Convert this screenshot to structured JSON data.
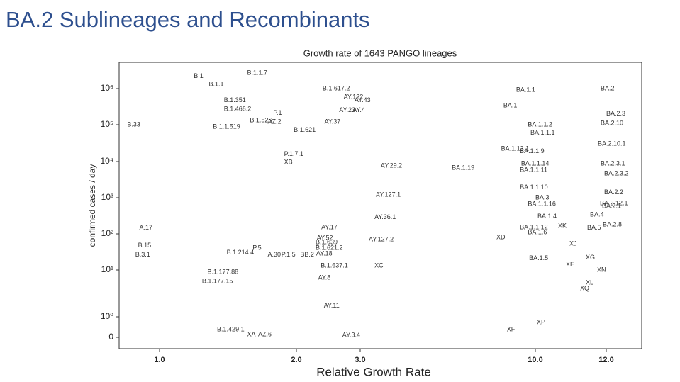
{
  "header": {
    "title": "BA.2 Sublineages and Recombinants"
  },
  "chart_data": {
    "type": "scatter",
    "title": "Growth rate of 1643 PANGO lineages",
    "xlabel": "Relative Growth Rate",
    "ylabel": "confirmed cases / day",
    "xlim": [
      0.7,
      13
    ],
    "ylim": [
      -0.55,
      5400000
    ],
    "xticks": [
      {
        "value": 1,
        "label": "1.0"
      },
      {
        "value": 2,
        "label": "2.0"
      },
      {
        "value": 3,
        "label": "3.0"
      },
      {
        "value": 10,
        "label": "10.0"
      },
      {
        "value": 12,
        "label": "12.0"
      }
    ],
    "yticks": [
      0,
      {
        "value": 1,
        "label": "10⁰"
      },
      {
        "value": 10,
        "label": "10¹"
      },
      {
        "value": 100,
        "label": "10²"
      },
      {
        "value": 1000,
        "label": "10³"
      },
      {
        "value": 10000,
        "label": "10⁴"
      },
      {
        "value": 100000,
        "label": "10⁵"
      },
      {
        "value": 1000000,
        "label": "10⁶"
      }
    ],
    "labels": [
      "B.1",
      "B.1.1.7",
      "B.1.1",
      "B.1.617.2",
      "AY.122",
      "AY.43",
      "BA.1.1",
      "BA.2",
      "B.1.351",
      "B.1.466.2",
      "AY.23",
      "AY.4",
      "B.33",
      "P.1",
      "B.1.526",
      "AZ.2",
      "AY.37",
      "BA.2.3",
      "BA.2.10",
      "BA.1",
      "BA.1.1.2",
      "BA.1.1.1",
      "BA.2.10.1",
      "BA.1.13.1",
      "BA.1.1.9",
      "BA.1.19",
      "BA.2.3.1",
      "BA.2.3.2",
      "BA.1.1.14",
      "BA.1.1.11",
      "BA.1.1.10",
      "BA.3",
      "BA.1.1.16",
      "BA.1.4",
      "BA.1.1.12",
      "BA.1.6",
      "BA.2.2",
      "BA.2.1",
      "BA.2.12.1",
      "BA.4",
      "BA.5",
      "BA.2.8",
      "XD",
      "XJ",
      "XK",
      "XG",
      "XE",
      "XN",
      "XL",
      "XQ",
      "XF",
      "XP",
      "AY.3.4",
      "AY.11",
      "AY.8",
      "XC",
      "XA",
      "AZ.6",
      "B.1.429.1",
      "BA.1.5",
      "B.1.637.1",
      "BB.2",
      "AY.127.2",
      "B.1.639",
      "B.15",
      "B.3.1",
      "P.5",
      "A.30",
      "P.1.5",
      "AY.29.2",
      "P.1.7.1",
      "AY.52",
      "AY.36.1",
      "XB",
      "A.17",
      "AY.127.1",
      "B.1.621",
      "B.1.1.519",
      "B.1.177.88",
      "B.1.177.15",
      "B.1.621.2",
      "AY.17",
      "AY.18",
      "B.1.214.4"
    ],
    "x": [
      1.25,
      1.64,
      1.36,
      2.41,
      2.74,
      2.91,
      9.23,
      11.84,
      1.47,
      1.47,
      2.67,
      2.88,
      0.76,
      1.83,
      1.66,
      1.79,
      2.44,
      12.0,
      11.84,
      8.72,
      9.7,
      9.8,
      11.76,
      8.63,
      9.38,
      6.66,
      11.84,
      11.94,
      9.43,
      9.38,
      9.38,
      10.0,
      9.7,
      10.06,
      9.38,
      9.7,
      11.94,
      11.88,
      11.82,
      11.54,
      11.46,
      11.9,
      8.44,
      10.96,
      10.64,
      11.42,
      10.86,
      11.74,
      11.42,
      11.26,
      8.86,
      10.04,
      2.72,
      2.43,
      2.34,
      3.57,
      1.64,
      1.72,
      1.42,
      9.75,
      2.38,
      2.06,
      3.34,
      2.3,
      0.84,
      0.82,
      1.68,
      1.79,
      1.89,
      3.82,
      1.91,
      2.32,
      3.57,
      1.91,
      0.85,
      3.62,
      1.98,
      1.39,
      1.35,
      1.31,
      2.3,
      2.39,
      2.31,
      1.49
    ],
    "y": [
      2200000,
      2700000,
      1300000,
      1000000,
      580000,
      470000,
      900000,
      1000000,
      470000,
      270000,
      250000,
      250000,
      100000,
      210000,
      130000,
      120000,
      120000,
      200000,
      110000,
      340000,
      100000,
      60000,
      30000,
      22000,
      19000,
      6600,
      8700,
      4600,
      8700,
      5800,
      1900,
      1000,
      660,
      300,
      150,
      110,
      1400,
      580,
      690,
      340,
      145,
      180,
      80,
      53,
      165,
      22,
      14,
      10,
      5.3,
      4,
      0.38,
      0.72,
      0.1,
      1.7,
      6.8,
      13,
      0.14,
      0.14,
      0.38,
      21,
      13,
      26,
      70,
      58,
      47,
      26,
      40,
      26,
      26,
      7600,
      16000,
      75,
      290,
      9500,
      145,
      1200,
      72000,
      87000,
      9,
      5.7,
      40,
      150,
      28,
      30
    ]
  }
}
